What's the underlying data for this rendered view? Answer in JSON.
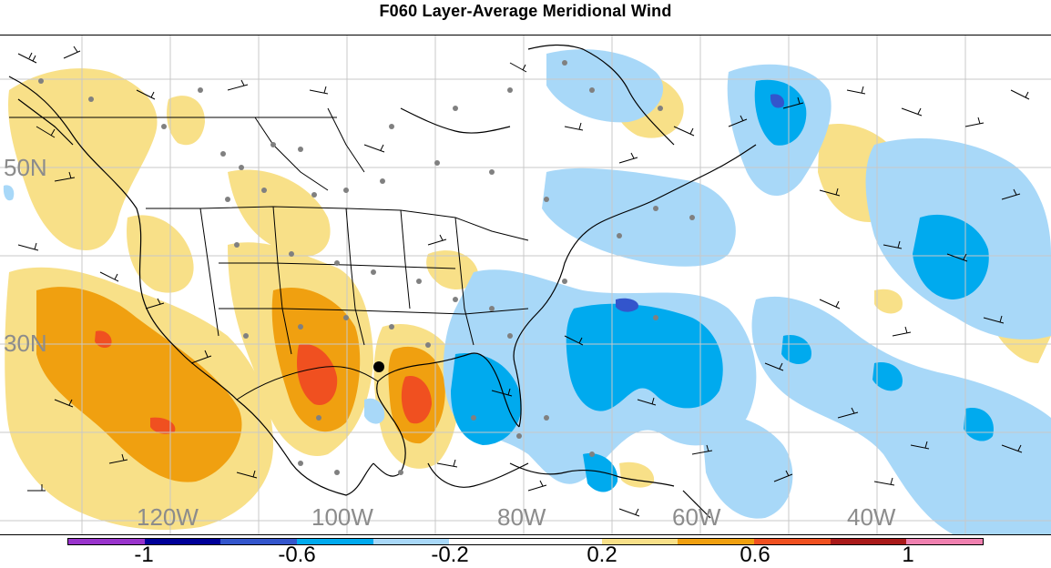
{
  "title": "F060 Layer-Average Meridional Wind",
  "latitude_labels": [
    "50N",
    "30N"
  ],
  "longitude_labels": [
    "120W",
    "100W",
    "80W",
    "60W",
    "40W"
  ],
  "colorbar": {
    "colors": [
      "#9933cc",
      "#000099",
      "#3355cc",
      "#00aaee",
      "#a8d8f8",
      "#ffffff",
      "#ffffff",
      "#f8e088",
      "#f0a010",
      "#f05020",
      "#aa1a1a",
      "#f080b0"
    ],
    "tick_labels": [
      "-1",
      "-0.6",
      "-0.2",
      "0.2",
      "0.6",
      "1"
    ]
  },
  "colors": {
    "map_lines": "#000000",
    "grid": "#c8c8c8",
    "station_dots": "#808080",
    "positive_low": "#f8e088",
    "positive_mid": "#f0a010",
    "positive_high": "#f05020",
    "negative_low": "#a8d8f8",
    "negative_mid": "#00aaee",
    "negative_high": "#3355cc"
  }
}
